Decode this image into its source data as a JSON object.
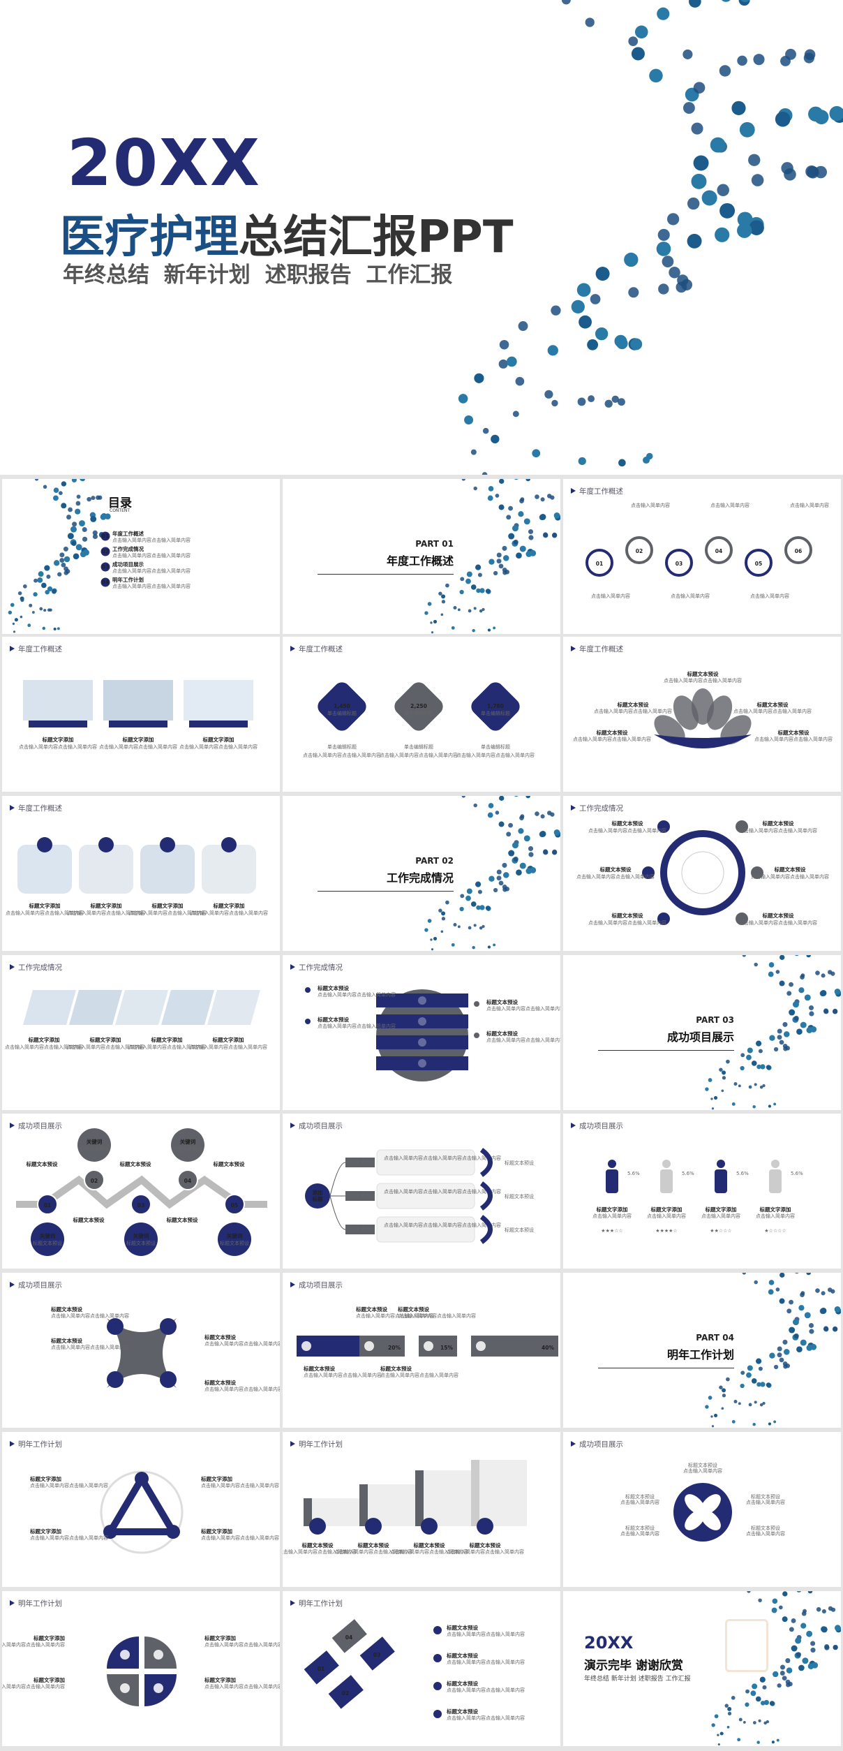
{
  "cover": {
    "year": "20XX",
    "title_a": "医疗护理",
    "title_b": "总结汇报",
    "title_c": "PPT",
    "subtitle": "年终总结  新年计划  述职报告  工作汇报"
  },
  "toc": {
    "title": "目录",
    "sub": "CONTENT",
    "items": [
      "年度工作概述",
      "工作完成情况",
      "成功项目展示",
      "明年工作计划"
    ],
    "items_num": [
      "01",
      "02",
      "03",
      "04"
    ],
    "desc": "点击输入简单内容点击输入简单内容"
  },
  "sections": {
    "h1": "年度工作概述",
    "h2": "工作完成情况",
    "h3": "成功项目展示",
    "h4": "明年工作计划"
  },
  "parts": [
    {
      "p": "PART 01",
      "n": "年度工作概述"
    },
    {
      "p": "PART 02",
      "n": "工作完成情况"
    },
    {
      "p": "PART 03",
      "n": "成功项目展示"
    },
    {
      "p": "PART 04",
      "n": "明年工作计划"
    }
  ],
  "nums6": [
    "01",
    "02",
    "03",
    "04",
    "05",
    "06"
  ],
  "nums5": [
    "01",
    "02",
    "03",
    "04",
    "05"
  ],
  "stats": [
    "1,450",
    "2,250",
    "1,780"
  ],
  "stats_sub": "单击编辑标题",
  "pct": [
    "40%",
    "20%",
    "15%",
    "40%"
  ],
  "small_title": "标题文本预设",
  "small_title2": "标题文字添加",
  "key": "关键词",
  "key_sub": "标题文本预设",
  "add_title": "添加标题",
  "ending": {
    "year": "20XX",
    "title": "演示完毕 谢谢欣赏",
    "subtitle": "年终总结  新年计划  述职报告  工作汇报"
  },
  "colors": {
    "navy": "#232b72",
    "grey": "#5f6168",
    "teal": "#1a6f99"
  }
}
